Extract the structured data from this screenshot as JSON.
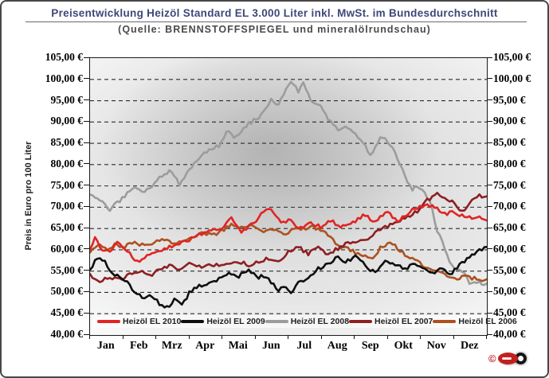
{
  "header": {
    "title": "Preisentwicklung Heizöl Standard EL 3.000 Liter inkl. MwSt. im Bundesdurchschnitt",
    "subtitle": "(Quelle: BRENNSTOFFSPIEGEL und mineralölrundschau)"
  },
  "chart_data": {
    "type": "line",
    "title": "Preisentwicklung Heizöl Standard EL 3.000 Liter inkl. MwSt. im Bundesdurchschnitt",
    "subtitle": "(Quelle: BRENNSTOFFSPIEGEL und mineralölrundschau)",
    "ylabel": "Preis in Euro pro 100 Liter",
    "xlabel": "",
    "ylim": [
      40,
      105
    ],
    "ytick_step": 5,
    "ytick_labels": [
      "105,00 €",
      "100,00 €",
      "95,00 €",
      "90,00 €",
      "85,00 €",
      "80,00 €",
      "75,00 €",
      "70,00 €",
      "65,00 €",
      "60,00 €",
      "55,00 €",
      "50,00 €",
      "45,00 €",
      "40,00 €"
    ],
    "x_categories": [
      "Jan",
      "Feb",
      "Mrz",
      "Apr",
      "Mai",
      "Jun",
      "Jul",
      "Aug",
      "Sep",
      "Okt",
      "Nov",
      "Dez"
    ],
    "grid": "horizontal-dashed",
    "legend_position": "bottom-inside",
    "x_unit": "month-position (0 = Jan 1, 12 = Dec 31)",
    "y_unit": "EUR per 100 Liter",
    "series": [
      {
        "name": "Heizöl EL 2010",
        "color": "#e12424",
        "points": [
          [
            0,
            60.2
          ],
          [
            0.15,
            63
          ],
          [
            0.35,
            60
          ],
          [
            0.6,
            59.6
          ],
          [
            0.8,
            61.6
          ],
          [
            1,
            60.8
          ],
          [
            1.3,
            58.1
          ],
          [
            1.55,
            57.2
          ],
          [
            1.8,
            58.9
          ],
          [
            2.1,
            59.4
          ],
          [
            2.4,
            60.6
          ],
          [
            2.7,
            61.4
          ],
          [
            3,
            62.1
          ],
          [
            3.3,
            63.6
          ],
          [
            3.65,
            64.3
          ],
          [
            4,
            65.1
          ],
          [
            4.25,
            67.7
          ],
          [
            4.55,
            64.2
          ],
          [
            4.85,
            65.6
          ],
          [
            5.15,
            68.1
          ],
          [
            5.45,
            70
          ],
          [
            5.75,
            66.4
          ],
          [
            6.05,
            66.9
          ],
          [
            6.35,
            64.9
          ],
          [
            6.65,
            66.6
          ],
          [
            7,
            65.3
          ],
          [
            7.3,
            66.9
          ],
          [
            7.6,
            65.4
          ],
          [
            8,
            66.6
          ],
          [
            8.3,
            68.4
          ],
          [
            8.55,
            66.3
          ],
          [
            9,
            68.9
          ],
          [
            9.3,
            66.4
          ],
          [
            9.6,
            68.6
          ],
          [
            9.9,
            69.9
          ],
          [
            10.2,
            70.6
          ],
          [
            10.5,
            69.8
          ],
          [
            10.75,
            68.4
          ],
          [
            11.05,
            68.9
          ],
          [
            11.35,
            67.4
          ],
          [
            11.7,
            67.6
          ],
          [
            12,
            66.9
          ]
        ]
      },
      {
        "name": "Heizöl EL 2009",
        "color": "#0f0f0f",
        "points": [
          [
            0,
            55.3
          ],
          [
            0.2,
            57.9
          ],
          [
            0.45,
            57.1
          ],
          [
            0.7,
            54.1
          ],
          [
            1,
            53.4
          ],
          [
            1.3,
            50.6
          ],
          [
            1.6,
            48.6
          ],
          [
            1.85,
            49.6
          ],
          [
            2.1,
            47.3
          ],
          [
            2.35,
            46.4
          ],
          [
            2.55,
            48.6
          ],
          [
            2.8,
            47.1
          ],
          [
            3,
            49.9
          ],
          [
            3.3,
            51.6
          ],
          [
            3.6,
            52.1
          ],
          [
            3.9,
            53.1
          ],
          [
            4.2,
            54.6
          ],
          [
            4.5,
            53.9
          ],
          [
            4.8,
            55.4
          ],
          [
            5.1,
            53.6
          ],
          [
            5.35,
            53.9
          ],
          [
            5.65,
            50.6
          ],
          [
            5.9,
            51.1
          ],
          [
            6.1,
            49.9
          ],
          [
            6.35,
            52.6
          ],
          [
            6.6,
            53.3
          ],
          [
            6.9,
            55.6
          ],
          [
            7.2,
            56.6
          ],
          [
            7.5,
            58.3
          ],
          [
            7.75,
            57.1
          ],
          [
            8.05,
            58.7
          ],
          [
            8.35,
            56.1
          ],
          [
            8.6,
            54.6
          ],
          [
            8.9,
            57.4
          ],
          [
            9.2,
            56.6
          ],
          [
            9.5,
            55.4
          ],
          [
            9.8,
            56.9
          ],
          [
            10.1,
            55.6
          ],
          [
            10.4,
            54.3
          ],
          [
            10.65,
            55.9
          ],
          [
            10.9,
            54.4
          ],
          [
            11.2,
            56.6
          ],
          [
            11.5,
            58.6
          ],
          [
            11.8,
            60.1
          ],
          [
            12,
            60.7
          ]
        ]
      },
      {
        "name": "Heizöl EL 2008",
        "color": "#9c9c9c",
        "points": [
          [
            0,
            72.9
          ],
          [
            0.3,
            71.6
          ],
          [
            0.6,
            69.4
          ],
          [
            0.9,
            71.6
          ],
          [
            1.1,
            72.9
          ],
          [
            1.4,
            74.9
          ],
          [
            1.6,
            73.3
          ],
          [
            1.9,
            75.3
          ],
          [
            2.2,
            77.6
          ],
          [
            2.45,
            78.4
          ],
          [
            2.7,
            75.4
          ],
          [
            3,
            78.6
          ],
          [
            3.3,
            81.6
          ],
          [
            3.6,
            83.4
          ],
          [
            3.9,
            84.3
          ],
          [
            4.15,
            87.9
          ],
          [
            4.4,
            86.4
          ],
          [
            4.7,
            89.1
          ],
          [
            5,
            90.6
          ],
          [
            5.2,
            91.9
          ],
          [
            5.5,
            95.6
          ],
          [
            5.7,
            93.9
          ],
          [
            5.95,
            98.1
          ],
          [
            6.1,
            99.6
          ],
          [
            6.3,
            97.1
          ],
          [
            6.45,
            98.9
          ],
          [
            6.7,
            94.4
          ],
          [
            7,
            93.6
          ],
          [
            7.2,
            90.4
          ],
          [
            7.5,
            88.4
          ],
          [
            7.8,
            88.7
          ],
          [
            8,
            87.4
          ],
          [
            8.3,
            84.6
          ],
          [
            8.5,
            82.1
          ],
          [
            8.8,
            86.6
          ],
          [
            9,
            85.6
          ],
          [
            9.2,
            83.1
          ],
          [
            9.5,
            77.6
          ],
          [
            9.75,
            74.1
          ],
          [
            9.9,
            74.9
          ],
          [
            10.1,
            73.9
          ],
          [
            10.3,
            70.6
          ],
          [
            10.5,
            64.6
          ],
          [
            10.7,
            61.1
          ],
          [
            10.9,
            56.4
          ],
          [
            11.1,
            55.1
          ],
          [
            11.3,
            54.6
          ],
          [
            11.5,
            51.6
          ],
          [
            11.7,
            52.4
          ],
          [
            11.9,
            51.7
          ],
          [
            12,
            52.1
          ]
        ]
      },
      {
        "name": "Heizöl EL 2007",
        "color": "#8e1f22",
        "points": [
          [
            0,
            54.3
          ],
          [
            0.3,
            52.4
          ],
          [
            0.6,
            53.6
          ],
          [
            0.9,
            52.9
          ],
          [
            1.2,
            54.1
          ],
          [
            1.5,
            55.1
          ],
          [
            1.8,
            53.9
          ],
          [
            2.1,
            55.6
          ],
          [
            2.4,
            56.3
          ],
          [
            2.7,
            55.6
          ],
          [
            3,
            56.6
          ],
          [
            3.3,
            55.9
          ],
          [
            3.6,
            56.9
          ],
          [
            3.9,
            56.1
          ],
          [
            4.2,
            56.6
          ],
          [
            4.5,
            57.3
          ],
          [
            4.8,
            56.3
          ],
          [
            5.1,
            57.1
          ],
          [
            5.4,
            58.1
          ],
          [
            5.7,
            57.3
          ],
          [
            6,
            59.4
          ],
          [
            6.3,
            60.6
          ],
          [
            6.6,
            59.1
          ],
          [
            6.9,
            60.9
          ],
          [
            7.15,
            58.9
          ],
          [
            7.5,
            60.4
          ],
          [
            7.8,
            61.6
          ],
          [
            8.1,
            61.9
          ],
          [
            8.4,
            62.6
          ],
          [
            8.7,
            64.3
          ],
          [
            9,
            65.6
          ],
          [
            9.3,
            66.9
          ],
          [
            9.6,
            67.6
          ],
          [
            9.9,
            69.1
          ],
          [
            10.2,
            71.6
          ],
          [
            10.45,
            73.1
          ],
          [
            10.7,
            72.4
          ],
          [
            10.9,
            71.6
          ],
          [
            11.1,
            69.9
          ],
          [
            11.3,
            68.6
          ],
          [
            11.5,
            71.4
          ],
          [
            11.7,
            72.6
          ],
          [
            12,
            72.6
          ]
        ]
      },
      {
        "name": "Heizöl EL 2006",
        "color": "#ad5120",
        "points": [
          [
            0,
            59.4
          ],
          [
            0.25,
            61.4
          ],
          [
            0.5,
            59.9
          ],
          [
            0.75,
            61.1
          ],
          [
            1,
            60.4
          ],
          [
            1.3,
            61.9
          ],
          [
            1.6,
            61.1
          ],
          [
            1.9,
            61.6
          ],
          [
            2.2,
            62.4
          ],
          [
            2.5,
            61.4
          ],
          [
            2.8,
            62.1
          ],
          [
            3.1,
            62.6
          ],
          [
            3.4,
            64.1
          ],
          [
            3.7,
            63.4
          ],
          [
            4,
            64.6
          ],
          [
            4.3,
            66.1
          ],
          [
            4.6,
            65.1
          ],
          [
            4.9,
            65.6
          ],
          [
            5.2,
            64.4
          ],
          [
            5.5,
            65.1
          ],
          [
            5.8,
            63.6
          ],
          [
            6.1,
            64.4
          ],
          [
            6.45,
            65.1
          ],
          [
            6.75,
            65.4
          ],
          [
            7,
            64.6
          ],
          [
            7.3,
            62.6
          ],
          [
            7.6,
            60.6
          ],
          [
            7.9,
            59.9
          ],
          [
            8.2,
            58.6
          ],
          [
            8.5,
            57.9
          ],
          [
            8.8,
            60.6
          ],
          [
            9.05,
            61.9
          ],
          [
            9.3,
            60.4
          ],
          [
            9.6,
            58.4
          ],
          [
            9.9,
            57.1
          ],
          [
            10.2,
            55.6
          ],
          [
            10.5,
            54.9
          ],
          [
            10.8,
            54.1
          ],
          [
            11.1,
            53.4
          ],
          [
            11.4,
            53.7
          ],
          [
            11.7,
            53.1
          ],
          [
            12,
            53.1
          ]
        ]
      }
    ]
  },
  "logo": {
    "icons": [
      "copyright-icon",
      "brand-oval-icon",
      "brand-ring-icon"
    ]
  }
}
